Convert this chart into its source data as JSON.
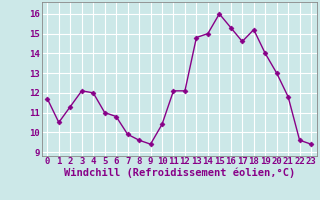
{
  "x": [
    0,
    1,
    2,
    3,
    4,
    5,
    6,
    7,
    8,
    9,
    10,
    11,
    12,
    13,
    14,
    15,
    16,
    17,
    18,
    19,
    20,
    21,
    22,
    23
  ],
  "y": [
    11.7,
    10.5,
    11.3,
    12.1,
    12.0,
    11.0,
    10.8,
    9.9,
    9.6,
    9.4,
    10.4,
    12.1,
    12.1,
    14.8,
    15.0,
    16.0,
    15.3,
    14.6,
    15.2,
    14.0,
    13.0,
    11.8,
    9.6,
    9.4
  ],
  "xlim": [
    -0.5,
    23.5
  ],
  "ylim": [
    8.8,
    16.6
  ],
  "yticks": [
    9,
    10,
    11,
    12,
    13,
    14,
    15,
    16
  ],
  "xticks": [
    0,
    1,
    2,
    3,
    4,
    5,
    6,
    7,
    8,
    9,
    10,
    11,
    12,
    13,
    14,
    15,
    16,
    17,
    18,
    19,
    20,
    21,
    22,
    23
  ],
  "xlabel": "Windchill (Refroidissement éolien,°C)",
  "line_color": "#880088",
  "marker": "D",
  "marker_size": 2.5,
  "bg_color": "#cce8e8",
  "grid_color": "#ffffff",
  "tick_color": "#880088",
  "label_color": "#880088",
  "tick_fontsize": 6.5,
  "label_fontsize": 7.5
}
